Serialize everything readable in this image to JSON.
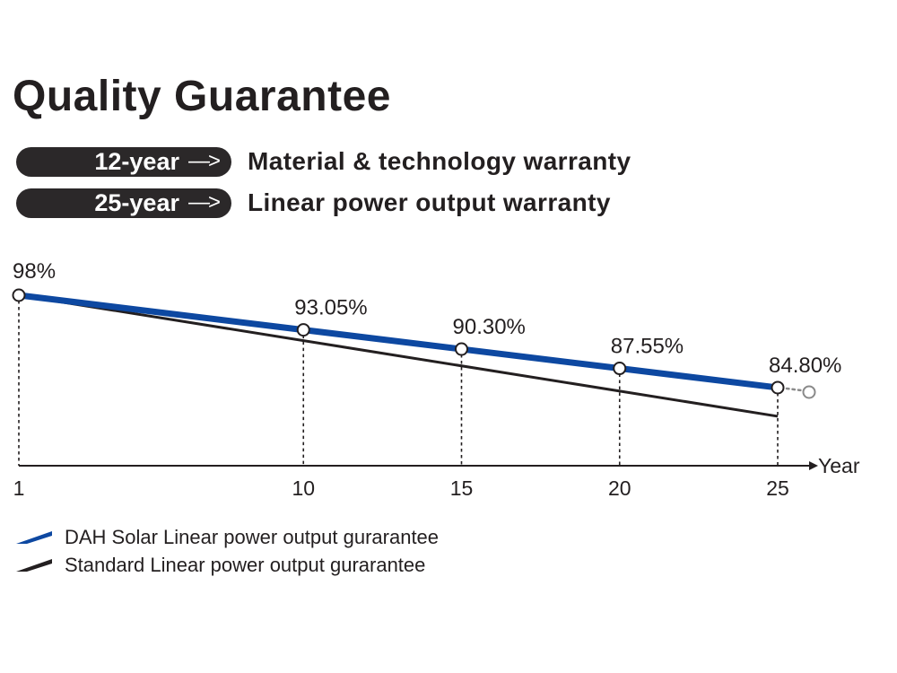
{
  "title": "Quality Guarantee",
  "warranties": [
    {
      "years": "12-year",
      "arrow": "—>",
      "description": "Material & technology warranty"
    },
    {
      "years": "25-year",
      "arrow": "—>",
      "description": "Linear power output warranty"
    }
  ],
  "colors": {
    "dah": "#0d48a1",
    "standard": "#231f20",
    "pill": "#2b2829",
    "ext": "#8a8a8a"
  },
  "chart_data": {
    "type": "line",
    "xlabel": "Year",
    "x_ticks": [
      "1",
      "10",
      "15",
      "20",
      "25"
    ],
    "series": [
      {
        "name": "DAH Solar Linear power output gurarantee",
        "x": [
          1,
          10,
          15,
          20,
          25
        ],
        "y": [
          98,
          93.05,
          90.3,
          87.55,
          84.8
        ],
        "labels": [
          "98%",
          "93.05%",
          "90.30%",
          "87.55%",
          "84.80%"
        ]
      },
      {
        "name": "Standard Linear power output gurarantee",
        "x": [
          1,
          25
        ],
        "y": [
          98,
          80.7
        ]
      }
    ],
    "legend": [
      {
        "label": "DAH Solar Linear power output gurarantee",
        "color": "#0d48a1"
      },
      {
        "label": "Standard Linear power output gurarantee",
        "color": "#231f20"
      }
    ]
  }
}
